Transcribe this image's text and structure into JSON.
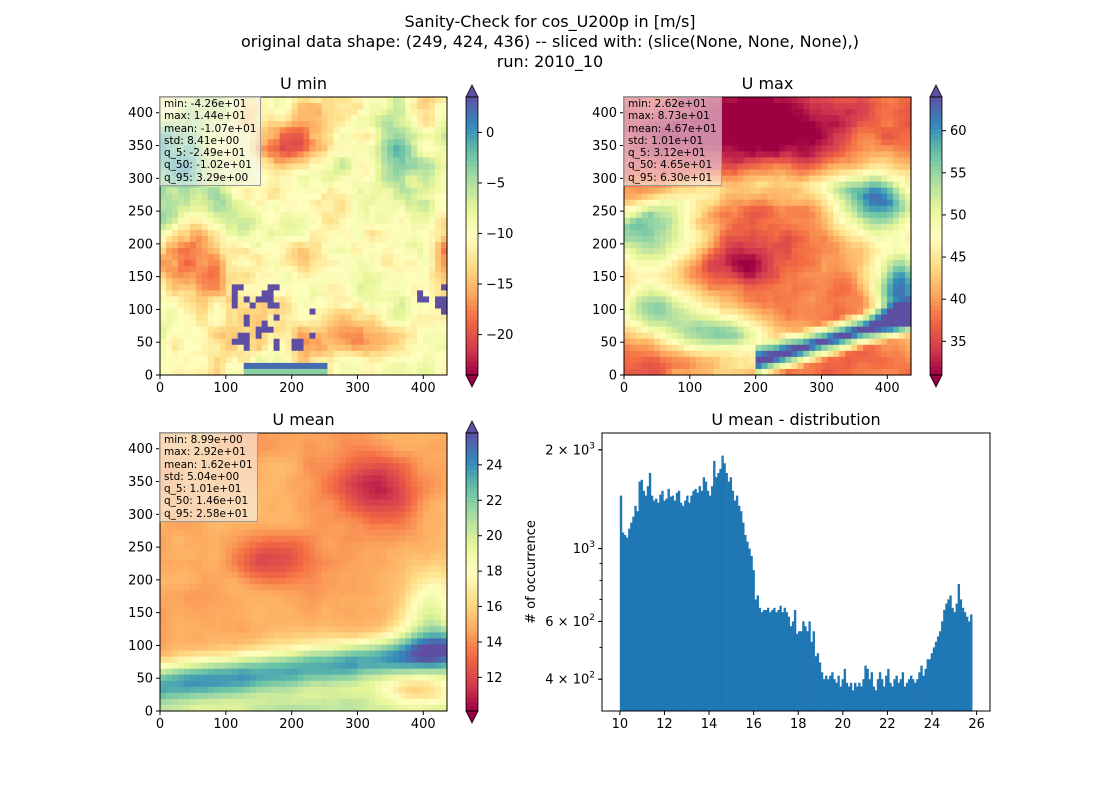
{
  "figure": {
    "title_lines": [
      "Sanity-Check for cos_U200p in [m/s]",
      "original data shape: (249, 424, 436) -- sliced with: (slice(None, None, None),)",
      "run: 2010_10"
    ]
  },
  "colors": {
    "spectral": [
      "#9e0142",
      "#d53e4f",
      "#f46d43",
      "#fdae61",
      "#fee08b",
      "#ffffbf",
      "#e6f598",
      "#abdda4",
      "#66c2a5",
      "#3288bd",
      "#5e4fa2"
    ],
    "hist_bar": "#1f77b4",
    "stats_box": "#f5f5f5"
  },
  "chart_data": [
    {
      "type": "heatmap",
      "title": "U min",
      "xlim": [
        0,
        436
      ],
      "ylim": [
        0,
        424
      ],
      "x_ticks": [
        0,
        100,
        200,
        300,
        400
      ],
      "y_ticks": [
        0,
        50,
        100,
        150,
        200,
        250,
        300,
        350,
        400
      ],
      "colorbar": {
        "range": [
          -24,
          3.5
        ],
        "ticks": [
          -20,
          -15,
          -10,
          -5,
          0
        ],
        "extend": "both"
      },
      "stats": [
        "min: -4.26e+01",
        "max: 1.44e+01",
        "mean: -1.07e+01",
        "std: 8.41e+00",
        "q_5: -2.49e+01",
        "q_50: -1.02e+01",
        "q_95: 3.29e+00"
      ]
    },
    {
      "type": "heatmap",
      "title": "U max",
      "xlim": [
        0,
        436
      ],
      "ylim": [
        0,
        424
      ],
      "x_ticks": [
        0,
        100,
        200,
        300,
        400
      ],
      "y_ticks": [
        0,
        50,
        100,
        150,
        200,
        250,
        300,
        350,
        400
      ],
      "colorbar": {
        "range": [
          31,
          64
        ],
        "ticks": [
          35,
          40,
          45,
          50,
          55,
          60
        ],
        "extend": "both"
      },
      "stats": [
        "min: 2.62e+01",
        "max: 8.73e+01",
        "mean: 4.67e+01",
        "std: 1.01e+01",
        "q_5: 3.12e+01",
        "q_50: 4.65e+01",
        "q_95: 6.30e+01"
      ]
    },
    {
      "type": "heatmap",
      "title": "U mean",
      "xlim": [
        0,
        436
      ],
      "ylim": [
        0,
        424
      ],
      "x_ticks": [
        0,
        100,
        200,
        300,
        400
      ],
      "y_ticks": [
        0,
        50,
        100,
        150,
        200,
        250,
        300,
        350,
        400
      ],
      "colorbar": {
        "range": [
          10.1,
          25.8
        ],
        "ticks": [
          12,
          14,
          16,
          18,
          20,
          22,
          24
        ],
        "extend": "both"
      },
      "stats": [
        "min: 8.99e+00",
        "max: 2.92e+01",
        "mean: 1.62e+01",
        "std: 5.04e+00",
        "q_5: 1.01e+01",
        "q_50: 1.46e+01",
        "q_95: 2.58e+01"
      ]
    },
    {
      "type": "bar",
      "title": "U mean - distribution",
      "ylabel": "# of occurrence",
      "yscale": "log",
      "xlim": [
        9.2,
        26.6
      ],
      "ylim": [
        320,
        2250
      ],
      "x_ticks": [
        10,
        12,
        14,
        16,
        18,
        20,
        22,
        24,
        26
      ],
      "y_major_ticks": [
        {
          "value": 400,
          "base": "4",
          "exp": "2"
        },
        {
          "value": 600,
          "base": "6",
          "exp": "2"
        },
        {
          "value": 1000,
          "base": "",
          "exp": "3"
        },
        {
          "value": 2000,
          "base": "2",
          "exp": "3"
        }
      ],
      "bin_range": [
        10.0,
        25.8
      ],
      "counts": [
        1450,
        1120,
        1100,
        1080,
        1150,
        1200,
        1250,
        1350,
        1300,
        1600,
        1620,
        1500,
        1450,
        1550,
        1700,
        1450,
        1400,
        1420,
        1380,
        1460,
        1500,
        1400,
        1420,
        1520,
        1440,
        1450,
        1400,
        1480,
        1500,
        1380,
        1350,
        1400,
        1450,
        1380,
        1450,
        1500,
        1520,
        1480,
        1550,
        1500,
        1650,
        1600,
        1500,
        1450,
        1550,
        1850,
        1650,
        1700,
        1750,
        1920,
        1820,
        1700,
        1600,
        1650,
        1500,
        1400,
        1450,
        1350,
        1300,
        1200,
        1100,
        1050,
        1000,
        950,
        860,
        700,
        720,
        660,
        640,
        650,
        650,
        660,
        640,
        650,
        660,
        640,
        650,
        670,
        640,
        660,
        640,
        620,
        580,
        600,
        650,
        550,
        560,
        560,
        600,
        580,
        560,
        600,
        520,
        560,
        470,
        480,
        450,
        420,
        400,
        410,
        400,
        410,
        420,
        400,
        390,
        410,
        380,
        400,
        430,
        390,
        380,
        390,
        370,
        390,
        380,
        390,
        380,
        400,
        440,
        430,
        400,
        420,
        380,
        370,
        400,
        420,
        400,
        380,
        410,
        430,
        390,
        380,
        400,
        410,
        390,
        400,
        420,
        380,
        390,
        400,
        410,
        400,
        390,
        400,
        420,
        440,
        410,
        430,
        460,
        460,
        480,
        500,
        520,
        540,
        560,
        600,
        650,
        680,
        700,
        720,
        660,
        640,
        680,
        780,
        700,
        660,
        640,
        620,
        600,
        630
      ]
    }
  ]
}
